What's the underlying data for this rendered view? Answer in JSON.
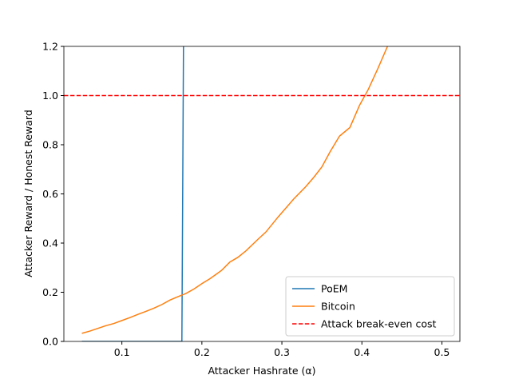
{
  "chart_data": {
    "type": "line",
    "xlabel": "Attacker Hashrate (α)",
    "ylabel": "Attacker Reward / Honest Reward",
    "xlim": [
      0.0275,
      0.5225
    ],
    "ylim": [
      0,
      1.2
    ],
    "xticks": [
      0.1,
      0.2,
      0.3,
      0.4,
      0.5
    ],
    "yticks": [
      {
        "value": 0,
        "label": "0.0"
      },
      0.2,
      0.4,
      0.6,
      0.8,
      {
        "value": 1,
        "label": "1.0"
      },
      1.2
    ],
    "series": [
      {
        "name": "PoEM",
        "color": "#1f77b4",
        "x": [
          0.05,
          0.1,
          0.15,
          0.175,
          0.177
        ],
        "values": [
          0,
          0,
          0,
          0,
          1.2
        ]
      },
      {
        "name": "Bitcoin",
        "color": "#ff7f0e",
        "x": [
          0.05,
          0.06,
          0.07,
          0.08,
          0.09,
          0.1,
          0.11,
          0.12,
          0.13,
          0.14,
          0.15,
          0.16,
          0.17,
          0.18,
          0.19,
          0.2,
          0.21,
          0.22,
          0.225,
          0.235,
          0.245,
          0.255,
          0.27,
          0.28,
          0.295,
          0.315,
          0.33,
          0.34,
          0.35,
          0.36,
          0.372,
          0.385,
          0.397,
          0.408,
          0.42,
          0.432
        ],
        "values": [
          0.033,
          0.042,
          0.053,
          0.064,
          0.073,
          0.085,
          0.097,
          0.11,
          0.122,
          0.135,
          0.15,
          0.168,
          0.182,
          0.195,
          0.213,
          0.235,
          0.255,
          0.278,
          0.29,
          0.323,
          0.342,
          0.368,
          0.415,
          0.445,
          0.505,
          0.58,
          0.63,
          0.668,
          0.71,
          0.77,
          0.835,
          0.87,
          0.96,
          1.025,
          1.11,
          1.2
        ]
      }
    ],
    "hline": {
      "name": "Attack break-even cost",
      "color": "#ff0000",
      "value": 1
    },
    "legend": "lower right"
  }
}
